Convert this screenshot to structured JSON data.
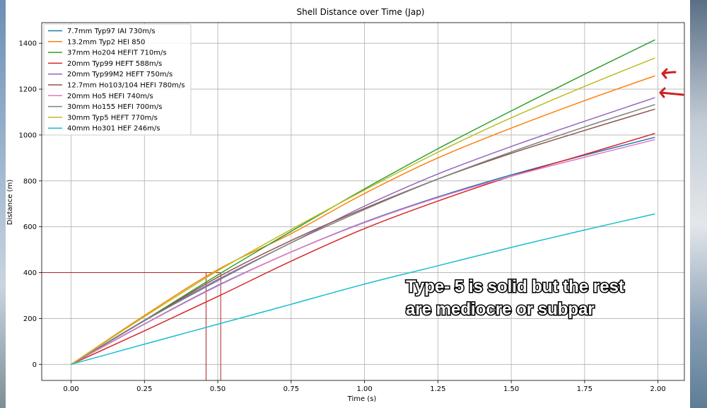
{
  "chart_data": {
    "type": "line",
    "title": "Shell Distance over Time (Jap)",
    "xlabel": "Time (s)",
    "ylabel": "Distance (m)",
    "xlim": [
      -0.1,
      2.09
    ],
    "ylim": [
      -70,
      1490
    ],
    "xticks": [
      0.0,
      0.25,
      0.5,
      0.75,
      1.0,
      1.25,
      1.5,
      1.75,
      2.0
    ],
    "xtick_labels": [
      "0.00",
      "0.25",
      "0.50",
      "0.75",
      "1.00",
      "1.25",
      "1.50",
      "1.75",
      "2.00"
    ],
    "yticks": [
      0,
      200,
      400,
      600,
      800,
      1000,
      1200,
      1400
    ],
    "ytick_labels": [
      "0",
      "200",
      "400",
      "600",
      "800",
      "1000",
      "1200",
      "1400"
    ],
    "grid": true,
    "legend_position": "top-left",
    "x": [
      0.0,
      0.25,
      0.5,
      0.75,
      1.0,
      1.25,
      1.5,
      1.75,
      1.99
    ],
    "series": [
      {
        "name": "7.7mm Typ97 IAI 730m/s",
        "color": "#1f77b4",
        "values": [
          0,
          176,
          344,
          490,
          620,
          730,
          826,
          912,
          990
        ]
      },
      {
        "name": "13.2mm Typ2 HEI 850",
        "color": "#ff7f0e",
        "values": [
          0,
          213,
          413,
          570,
          745,
          900,
          1030,
          1150,
          1258
        ]
      },
      {
        "name": "37mm Ho204 HEFIT 710m/s",
        "color": "#2ca02c",
        "values": [
          0,
          192,
          390,
          580,
          765,
          940,
          1105,
          1265,
          1415
        ]
      },
      {
        "name": "20mm Typ99 HEFT 588m/s",
        "color": "#d62728",
        "values": [
          0,
          146,
          296,
          450,
          592,
          712,
          820,
          915,
          1007
        ]
      },
      {
        "name": "20mm Typ99M2 HEFT 750m/s",
        "color": "#9467bd",
        "values": [
          0,
          192,
          370,
          530,
          690,
          830,
          950,
          1060,
          1163
        ]
      },
      {
        "name": "12.7mm Ho103/104 HEFI 780m/s",
        "color": "#8c564b",
        "values": [
          0,
          190,
          380,
          540,
          680,
          808,
          920,
          1020,
          1113
        ]
      },
      {
        "name": "20mm Ho5 HEFI 740m/s",
        "color": "#e377c2",
        "values": [
          0,
          175,
          342,
          490,
          618,
          727,
          820,
          903,
          980
        ]
      },
      {
        "name": "30mm Ho155 HEFI 700m/s",
        "color": "#7f7f7f",
        "values": [
          0,
          190,
          365,
          530,
          675,
          808,
          926,
          1035,
          1133
        ]
      },
      {
        "name": "30mm Typ5 HEFT 770m/s",
        "color": "#bcbd22",
        "values": [
          0,
          208,
          408,
          588,
          760,
          925,
          1075,
          1212,
          1336
        ]
      },
      {
        "name": "40mm Ho301 HEF 246m/s",
        "color": "#17becf",
        "values": [
          0,
          88,
          175,
          262,
          350,
          430,
          510,
          586,
          656
        ]
      }
    ],
    "reference_lines": {
      "color": "#b22222",
      "horizontal": {
        "y": 400,
        "x_end": 0.51
      },
      "vertical_x": [
        0.46,
        0.51
      ]
    },
    "annotation": {
      "lines": [
        "Type- 5 is solid but the rest",
        "are mediocre or subpar"
      ]
    },
    "arrow_color": "#cc2222"
  }
}
